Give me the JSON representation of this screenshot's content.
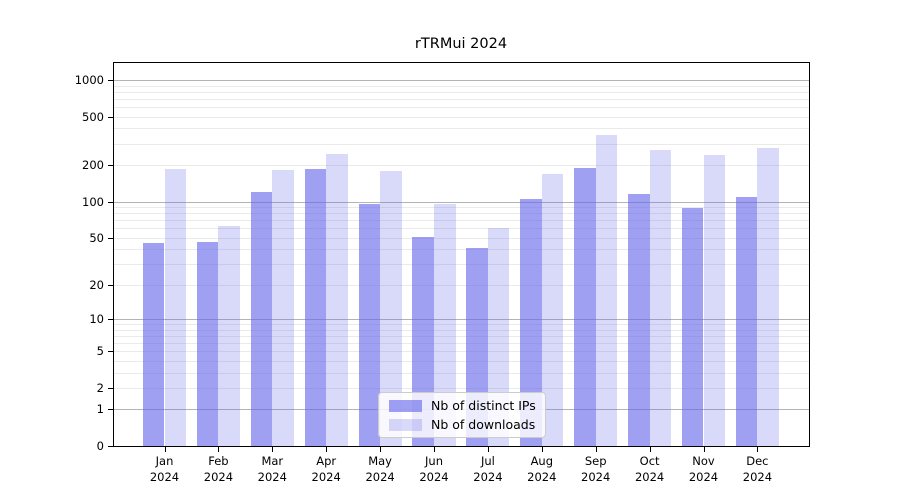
{
  "chart_data": {
    "type": "bar",
    "title": "rTRMui 2024",
    "categories": [
      "Jan 2024",
      "Feb 2024",
      "Mar 2024",
      "Apr 2024",
      "May 2024",
      "Jun 2024",
      "Jul 2024",
      "Aug 2024",
      "Sep 2024",
      "Oct 2024",
      "Nov 2024",
      "Dec 2024"
    ],
    "series": [
      {
        "name": "Nb of distinct IPs",
        "color": "rgba(102,102,235,0.62)",
        "values": [
          45,
          46,
          120,
          187,
          95,
          51,
          41,
          105,
          188,
          115,
          88,
          109
        ]
      },
      {
        "name": "Nb of downloads",
        "color": "rgba(102,102,235,0.25)",
        "values": [
          185,
          63,
          181,
          246,
          178,
          96,
          60,
          170,
          355,
          265,
          240,
          275
        ]
      }
    ],
    "yscale": "log10(1+value)",
    "yticks": [
      0,
      1,
      2,
      5,
      10,
      20,
      50,
      100,
      200,
      500,
      1000
    ],
    "ylim": [
      0,
      1350
    ],
    "grid": {
      "major_values": [
        1,
        10,
        100,
        1000
      ],
      "minor_values": [
        2,
        3,
        4,
        5,
        6,
        7,
        8,
        9,
        20,
        30,
        40,
        50,
        60,
        70,
        80,
        90,
        200,
        300,
        400,
        500,
        600,
        700,
        800,
        900
      ]
    },
    "legend_position": "inside lower-center",
    "xlabel": "",
    "ylabel": ""
  },
  "colors": {
    "major_grid": "#b3b3b3",
    "minor_grid": "#eaeaea",
    "axis": "#000000",
    "background": "#ffffff",
    "legend_border": "#cccccc",
    "bar_base": "#6666eb"
  }
}
